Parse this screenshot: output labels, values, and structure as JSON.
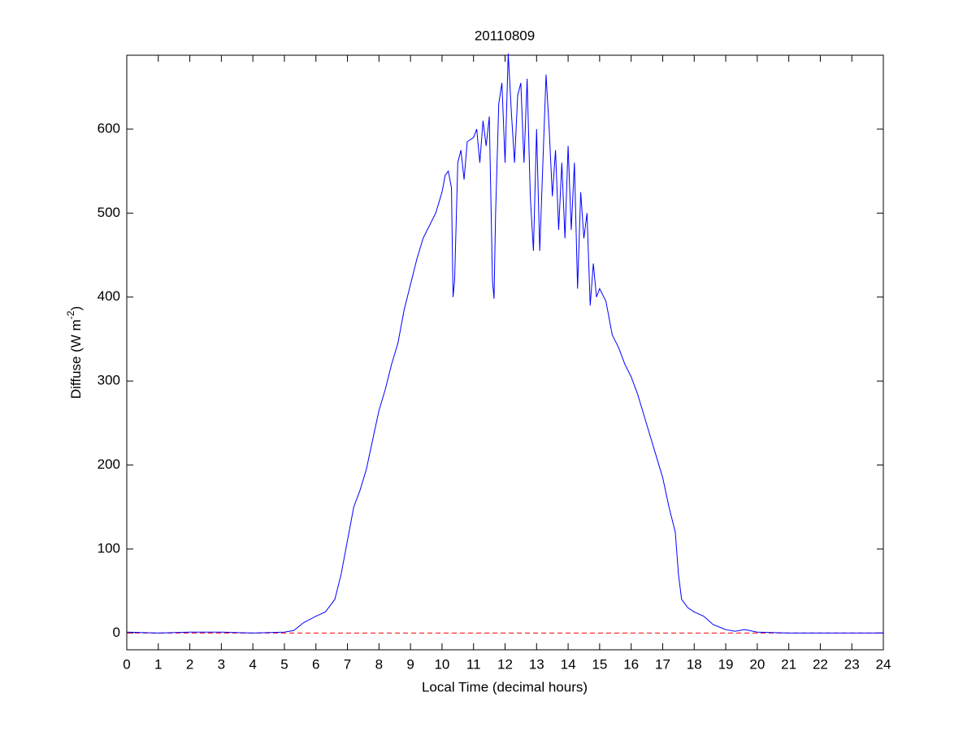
{
  "chart_data": {
    "type": "line",
    "title": "20110809",
    "xlabel": "Local Time (decimal hours)",
    "ylabel": [
      "Diffuse (W m",
      "-2",
      ")"
    ],
    "x": [
      0,
      1,
      2,
      3,
      4,
      5,
      5.3,
      5.6,
      6,
      6.3,
      6.6,
      6.8,
      7,
      7.2,
      7.4,
      7.6,
      7.8,
      8,
      8.2,
      8.4,
      8.6,
      8.8,
      9,
      9.2,
      9.4,
      9.6,
      9.8,
      10,
      10.1,
      10.2,
      10.3,
      10.35,
      10.4,
      10.5,
      10.6,
      10.7,
      10.8,
      11,
      11.1,
      11.2,
      11.3,
      11.4,
      11.5,
      11.6,
      11.65,
      11.7,
      11.8,
      11.9,
      12,
      12.1,
      12.2,
      12.3,
      12.4,
      12.5,
      12.6,
      12.7,
      12.8,
      12.9,
      13,
      13.1,
      13.2,
      13.3,
      13.4,
      13.5,
      13.6,
      13.7,
      13.8,
      13.9,
      14,
      14.1,
      14.2,
      14.3,
      14.4,
      14.5,
      14.6,
      14.7,
      14.8,
      14.9,
      15,
      15.2,
      15.4,
      15.6,
      15.8,
      16,
      16.2,
      16.4,
      16.6,
      16.8,
      17,
      17.2,
      17.4,
      17.5,
      17.6,
      17.8,
      18,
      18.3,
      18.6,
      19,
      19.3,
      19.6,
      20,
      21,
      22,
      23,
      24
    ],
    "series": [
      {
        "color": "#0000ff",
        "values": [
          1,
          0,
          1,
          1,
          0,
          1,
          3,
          12,
          20,
          25,
          40,
          70,
          110,
          150,
          170,
          195,
          230,
          265,
          290,
          320,
          345,
          385,
          415,
          445,
          470,
          485,
          500,
          525,
          545,
          550,
          530,
          400,
          420,
          560,
          575,
          540,
          585,
          590,
          600,
          560,
          610,
          580,
          615,
          420,
          398,
          500,
          630,
          655,
          560,
          690,
          620,
          560,
          640,
          655,
          560,
          660,
          520,
          455,
          600,
          455,
          560,
          665,
          600,
          520,
          575,
          480,
          560,
          470,
          580,
          480,
          560,
          410,
          525,
          470,
          500,
          390,
          440,
          400,
          410,
          395,
          355,
          340,
          320,
          305,
          285,
          260,
          235,
          210,
          185,
          150,
          120,
          70,
          40,
          30,
          25,
          20,
          10,
          4,
          2,
          4,
          1,
          0,
          0,
          0,
          0
        ]
      }
    ],
    "reference_line": {
      "value": 0,
      "color": "#ff0000"
    },
    "xlim": [
      0,
      24
    ],
    "xticks": [
      0,
      1,
      2,
      3,
      4,
      5,
      6,
      7,
      8,
      9,
      10,
      11,
      12,
      13,
      14,
      15,
      16,
      17,
      18,
      19,
      20,
      21,
      22,
      23,
      24
    ],
    "ylim": [
      -20,
      688
    ],
    "yticks": [
      0,
      100,
      200,
      300,
      400,
      500,
      600
    ],
    "grid": false
  }
}
